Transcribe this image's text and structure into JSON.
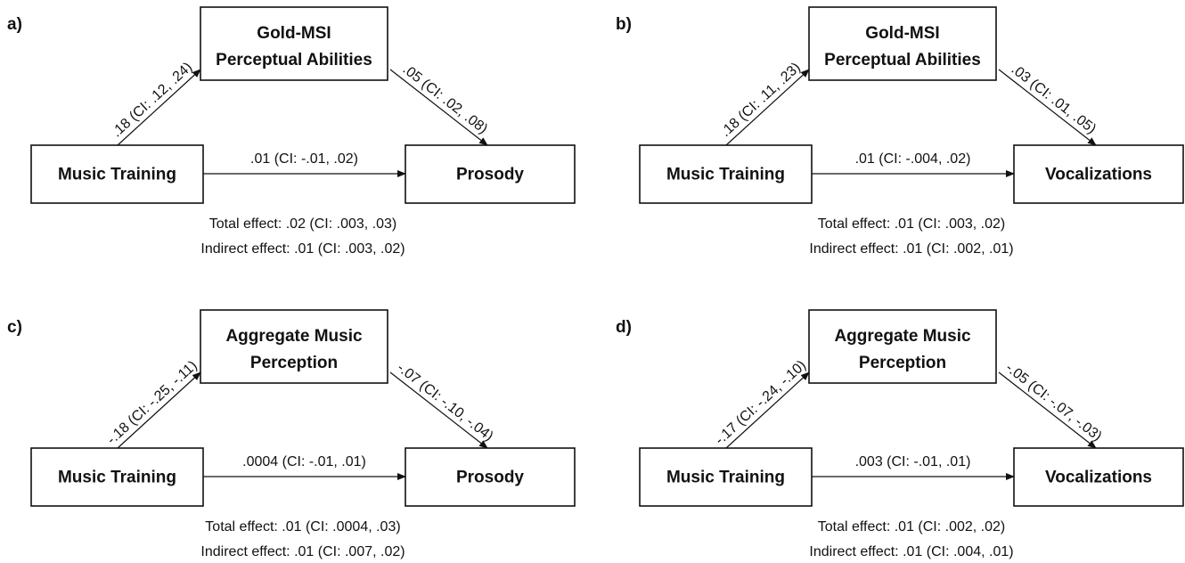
{
  "panels": [
    {
      "label": "a)",
      "mediator": [
        "Gold-MSI",
        "Perceptual Abilities"
      ],
      "x": "Music Training",
      "y": "Prosody",
      "a": ".18 (CI: .12, .24)",
      "b": ".05 (CI: .02, .08)",
      "c": ".01 (CI: -.01, .02)",
      "total": "Total effect: .02 (CI: .003, .03)",
      "indirect": "Indirect effect: .01 (CI: .003, .02)"
    },
    {
      "label": "b)",
      "mediator": [
        "Gold-MSI",
        "Perceptual Abilities"
      ],
      "x": "Music Training",
      "y": "Vocalizations",
      "a": ".18 (CI: .11, .23)",
      "b": ".03 (CI: .01, .05)",
      "c": ".01 (CI: -.004, .02)",
      "total": "Total effect: .01 (CI: .003, .02)",
      "indirect": "Indirect effect: .01 (CI: .002, .01)"
    },
    {
      "label": "c)",
      "mediator": [
        "Aggregate Music",
        "Perception"
      ],
      "x": "Music Training",
      "y": "Prosody",
      "a": "-.18 (CI: -.25, -.11)",
      "b": "-.07 (CI: -.10, -.04)",
      "c": ".0004 (CI: -.01, .01)",
      "total": "Total effect: .01 (CI: .0004, .03)",
      "indirect": "Indirect effect: .01 (CI: .007, .02)"
    },
    {
      "label": "d)",
      "mediator": [
        "Aggregate Music",
        "Perception"
      ],
      "x": "Music Training",
      "y": "Vocalizations",
      "a": "-.17 (CI: -.24, -.10)",
      "b": "-.05 (CI: -.07, -.03)",
      "c": ".003 (CI: -.01, .01)",
      "total": "Total effect: .01 (CI: .002, .02)",
      "indirect": "Indirect effect: .01 (CI: .004, .01)"
    }
  ]
}
